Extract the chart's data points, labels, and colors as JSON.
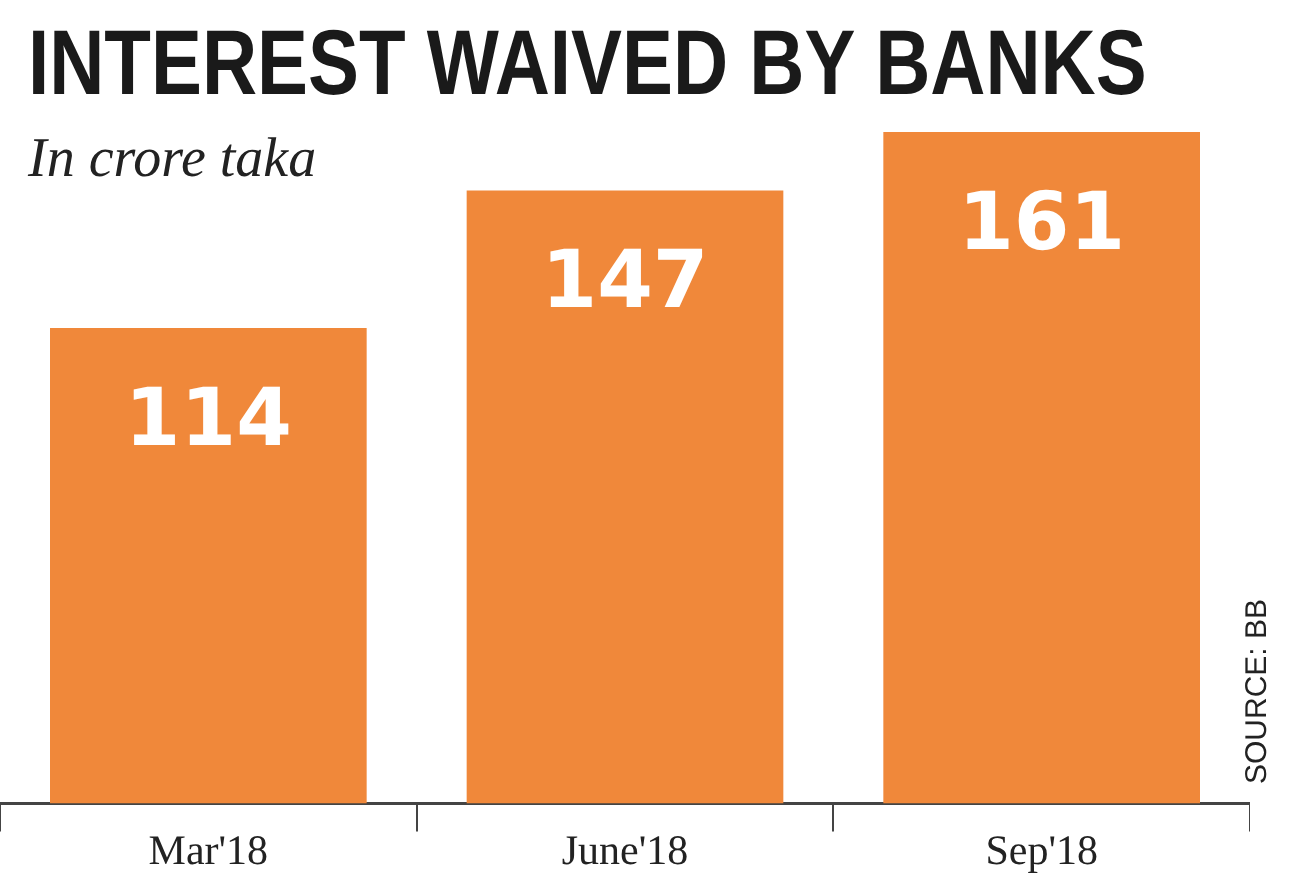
{
  "chart_data": {
    "type": "bar",
    "title": "INTEREST WAIVED BY BANKS",
    "subtitle": "In crore taka",
    "categories": [
      "Mar'18",
      "June'18",
      "Sep'18"
    ],
    "values": [
      114,
      147,
      161
    ],
    "color": "#f0883a",
    "data_labels": true,
    "grid": false,
    "legend": false,
    "tick_labels": "x",
    "annotations": [
      "SOURCE: BB"
    ]
  }
}
